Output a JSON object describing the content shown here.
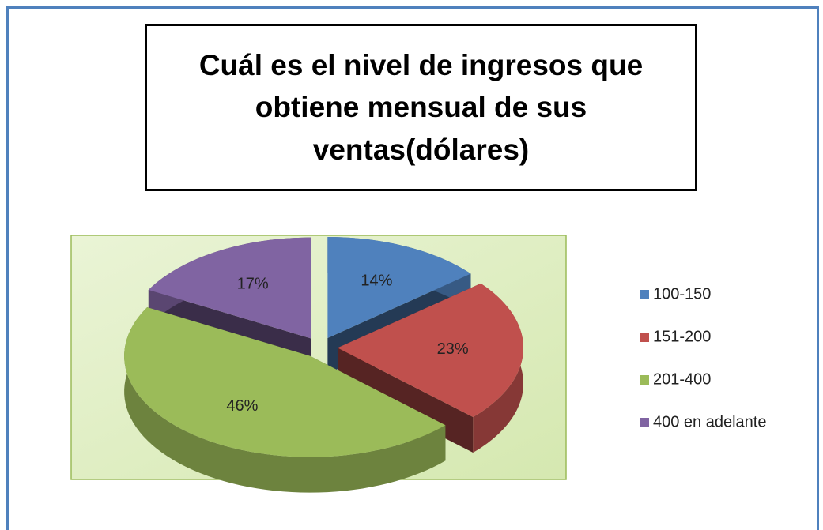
{
  "chart_data": {
    "type": "pie",
    "title": "Cuál es el nivel de ingresos que obtiene mensual de sus ventas(dólares)",
    "categories": [
      "100-150",
      "151-200",
      "201-400",
      "400 en adelante"
    ],
    "values": [
      14,
      23,
      46,
      17
    ],
    "value_labels": [
      "14%",
      "23%",
      "46%",
      "17%"
    ],
    "colors": [
      "#4f81bd",
      "#c0504d",
      "#9bbb59",
      "#8064a2"
    ],
    "legend": "right"
  }
}
